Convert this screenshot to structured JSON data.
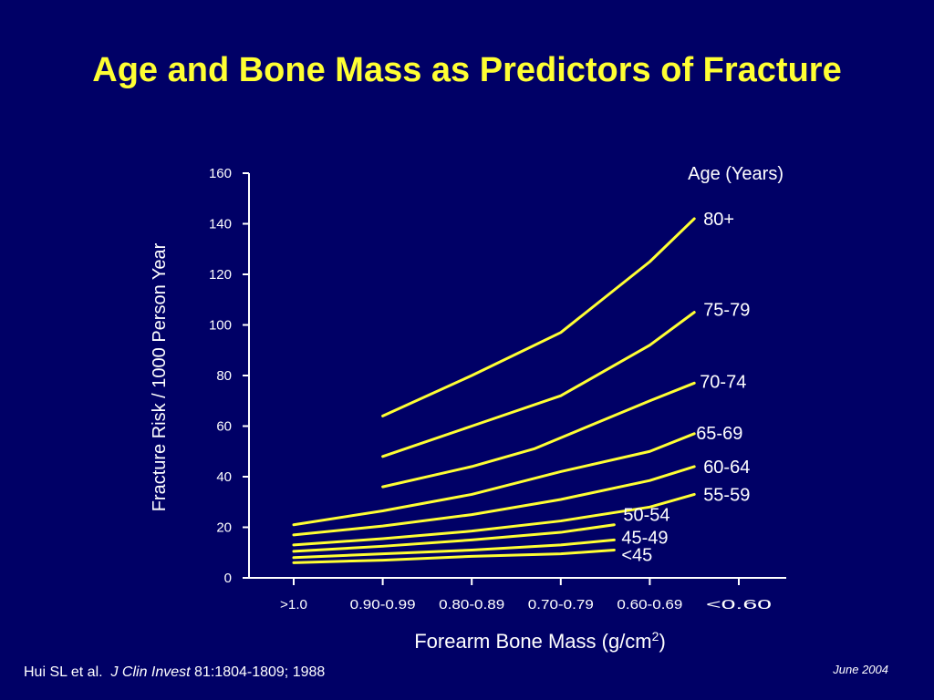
{
  "slide": {
    "title": "Age and Bone Mass as Predictors of Fracture",
    "citation_authors": "Hui SL et al.",
    "citation_journal": "J Clin Invest",
    "citation_details": "81:1804-1809; 1988",
    "date": "June 2004"
  },
  "colors": {
    "background": "#000066",
    "title": "#ffff33",
    "series": "#ffff33",
    "text": "#ffffff"
  },
  "chart_data": {
    "type": "line",
    "title": "Age and Bone Mass as Predictors of Fracture",
    "xlabel_text": "Forearm Bone Mass (g/cm",
    "xlabel_sup": "2",
    "xlabel_close": ")",
    "ylabel": "Fracture Risk / 1000 Person Year",
    "legend_title": "Age (Years)",
    "categories": [
      ">1.0",
      "0.90-0.99",
      "0.80-0.89",
      "0.70-0.79",
      "0.60-0.69",
      "<0.60"
    ],
    "yticks": [
      "0",
      "20",
      "40",
      "60",
      "80",
      "100",
      "120",
      "140",
      "160"
    ],
    "ylim": [
      0,
      160
    ],
    "grid": false,
    "series": [
      {
        "name": "<45",
        "x": [
          0,
          1,
          2,
          3,
          3.6
        ],
        "y": [
          6,
          7,
          8.5,
          9.5,
          11
        ]
      },
      {
        "name": "45-49",
        "x": [
          0,
          1,
          2,
          3,
          3.6
        ],
        "y": [
          8,
          9.5,
          11,
          13,
          15
        ]
      },
      {
        "name": "50-54",
        "x": [
          0,
          1,
          2,
          3,
          3.6
        ],
        "y": [
          10.5,
          12.5,
          15,
          18,
          21
        ]
      },
      {
        "name": "55-59",
        "x": [
          0,
          1,
          2,
          3,
          4,
          4.5
        ],
        "y": [
          13,
          15.5,
          18.5,
          22.5,
          28,
          33
        ]
      },
      {
        "name": "60-64",
        "x": [
          0,
          1,
          2,
          3,
          4,
          4.5
        ],
        "y": [
          17,
          20.5,
          25,
          31,
          38.5,
          44
        ]
      },
      {
        "name": "65-69",
        "x": [
          0,
          1,
          2,
          3,
          4,
          4.5
        ],
        "y": [
          21,
          26.5,
          33,
          42,
          50,
          57
        ]
      },
      {
        "name": "70-74",
        "x": [
          1,
          2,
          2.7,
          4,
          4.5
        ],
        "y": [
          36,
          44,
          51,
          70,
          77
        ]
      },
      {
        "name": "75-79",
        "x": [
          1,
          2,
          3,
          4,
          4.5
        ],
        "y": [
          48,
          60,
          72,
          92,
          105
        ]
      },
      {
        "name": "80+",
        "x": [
          1,
          2,
          3,
          4,
          4.5
        ],
        "y": [
          64,
          80,
          97,
          125,
          142
        ]
      }
    ]
  }
}
